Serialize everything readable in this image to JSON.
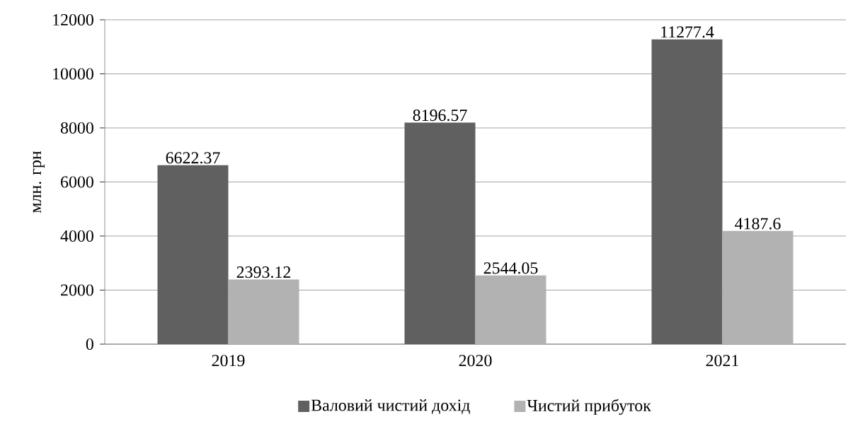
{
  "chart_data": {
    "type": "bar",
    "ylabel": "млн. грн",
    "categories": [
      "2019",
      "2020",
      "2021"
    ],
    "series": [
      {
        "name": "Валовий чистий дохід",
        "color": "#606060",
        "values": [
          6622.37,
          8196.57,
          11277.4
        ]
      },
      {
        "name": "Чистий прибуток",
        "color": "#b2b2b2",
        "values": [
          2393.12,
          2544.05,
          4187.6
        ]
      }
    ],
    "ylim": [
      0,
      12000
    ],
    "yticks": [
      0,
      2000,
      4000,
      6000,
      8000,
      10000,
      12000
    ],
    "grid": "y",
    "legend": "bottom",
    "data_labels": true
  }
}
